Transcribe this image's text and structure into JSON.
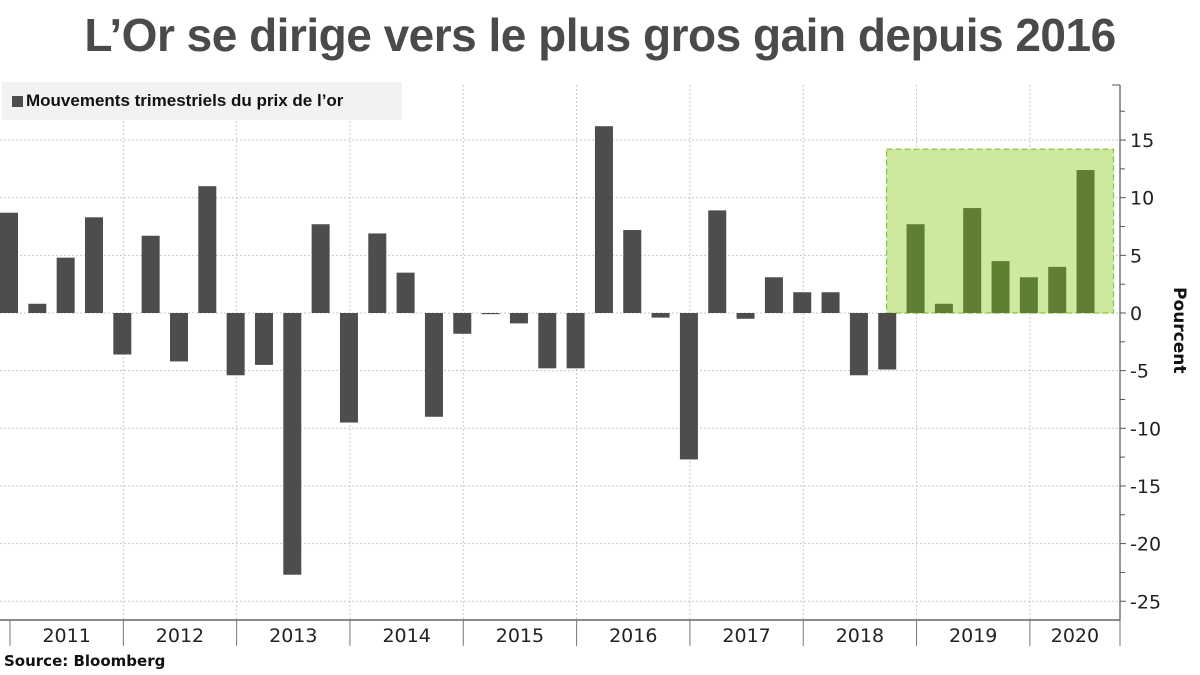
{
  "title": "L’Or se dirige vers le plus gros gain depuis 2016",
  "source": "Source:  Bloomberg",
  "chart_data": {
    "type": "bar",
    "title": "L’Or se dirige vers le plus gros gain depuis 2016",
    "legend": {
      "label": "Mouvements trimestriels du prix de l’or",
      "placement": "top-left"
    },
    "ylabel": "Pourcent",
    "ylim": [
      -26.5,
      19.5
    ],
    "yticks": [
      15,
      10,
      5,
      0,
      -5,
      -10,
      -15,
      -20,
      -25
    ],
    "year_labels": [
      "2011",
      "2012",
      "2013",
      "2014",
      "2015",
      "2016",
      "2017",
      "2018",
      "2019",
      "2020"
    ],
    "grid": true,
    "y_axis_side": "right",
    "bar_color": "#4d4d4d",
    "highlight_bar_color": "#5f7f33",
    "highlight_fill": "#cde9a0",
    "highlight_border": "#8fc43a",
    "highlight_range": {
      "from": "2019 Q1",
      "to": "2020 Q3",
      "ymax": 14.2
    },
    "categories": [
      "2011 Q1",
      "2011 Q2",
      "2011 Q3",
      "2011 Q4",
      "2012 Q1",
      "2012 Q2",
      "2012 Q3",
      "2012 Q4",
      "2013 Q1",
      "2013 Q2",
      "2013 Q3",
      "2013 Q4",
      "2014 Q1",
      "2014 Q2",
      "2014 Q3",
      "2014 Q4",
      "2015 Q1",
      "2015 Q2",
      "2015 Q3",
      "2015 Q4",
      "2016 Q1",
      "2016 Q2",
      "2016 Q3",
      "2016 Q4",
      "2017 Q1",
      "2017 Q2",
      "2017 Q3",
      "2017 Q4",
      "2018 Q1",
      "2018 Q2",
      "2018 Q3",
      "2018 Q4",
      "2019 Q1",
      "2019 Q2",
      "2019 Q3",
      "2019 Q4",
      "2020 Q1",
      "2020 Q2",
      "2020 Q3"
    ],
    "values": [
      8.7,
      0.8,
      4.8,
      8.3,
      -3.6,
      6.7,
      -4.2,
      11.0,
      -5.4,
      -4.5,
      -22.7,
      7.7,
      -9.5,
      6.9,
      3.5,
      -9.0,
      -1.8,
      -0.1,
      -0.9,
      -4.8,
      -4.8,
      16.2,
      7.2,
      -0.4,
      -12.7,
      8.9,
      -0.5,
      3.1,
      1.8,
      1.8,
      -5.4,
      -4.9,
      7.7,
      0.8,
      9.1,
      4.5,
      3.1,
      4.0,
      12.4
    ]
  }
}
